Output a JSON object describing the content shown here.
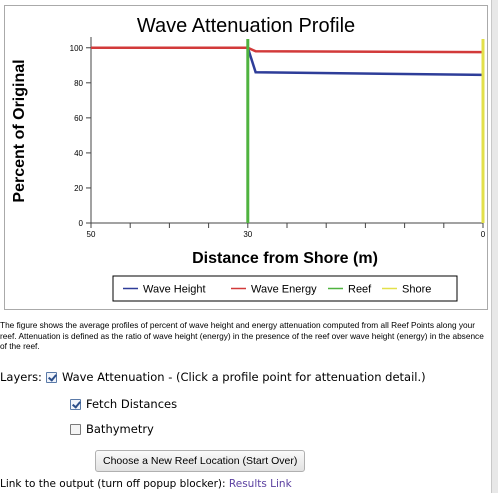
{
  "chart_data": {
    "type": "line",
    "title": "Wave Attenuation Profile",
    "xlabel": "Distance from Shore (m)",
    "ylabel": "Percent of Original",
    "xlim": [
      50,
      0
    ],
    "ylim": [
      0,
      105
    ],
    "x_tick_labels": [
      "50",
      "30",
      "0"
    ],
    "x_tick_values": [
      50,
      30,
      0
    ],
    "y_ticks": [
      "0",
      "20",
      "40",
      "60",
      "80",
      "100"
    ],
    "series": [
      {
        "name": "Wave Height",
        "color": "#2e3d99",
        "x": [
          50,
          30,
          29,
          0
        ],
        "y": [
          100,
          100,
          86,
          84.5
        ]
      },
      {
        "name": "Wave Energy",
        "color": "#d23a3a",
        "x": [
          50,
          30,
          29,
          0
        ],
        "y": [
          100,
          100,
          98,
          97.5
        ]
      },
      {
        "name": "Reef",
        "color": "#4fb33f",
        "x_at": 30
      },
      {
        "name": "Shore",
        "color": "#e3e04a",
        "x_at": 0
      }
    ],
    "legend_position": "bottom-center"
  },
  "caption": "The figure shows the average profiles of percent of wave height and energy attenuation computed from all Reef Points along your reef. Attenuation is defined as the ratio of wave height (energy) in the presence of the reef over wave height (energy) in the absence of the reef.",
  "layers": {
    "label": "Layers:",
    "items": [
      {
        "label": "Wave Attenuation - (Click a profile point for attenuation detail.)",
        "checked": true
      },
      {
        "label": "Fetch Distances",
        "checked": true
      },
      {
        "label": "Bathymetry",
        "checked": false
      }
    ]
  },
  "button_label": "Choose a New Reef Location (Start Over)",
  "link_row": {
    "text": "Link to the output (turn off popup blocker): ",
    "link_label": "Results Link"
  }
}
